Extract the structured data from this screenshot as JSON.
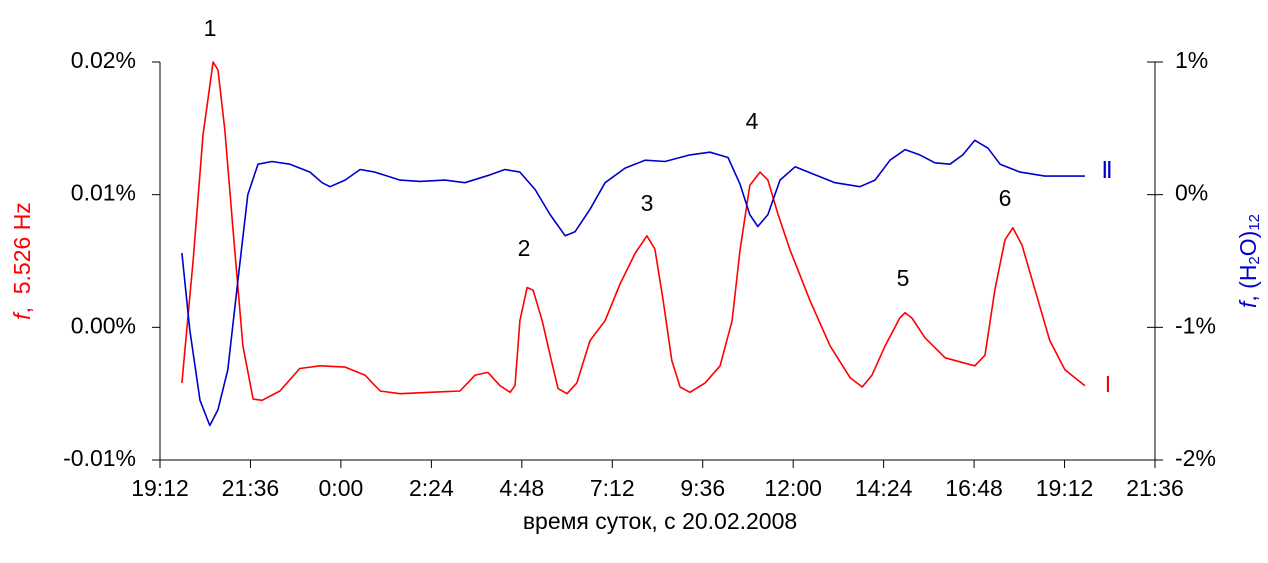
{
  "chart_data": {
    "type": "line",
    "xlabel": "время суток, с 20.02.2008",
    "ylabel": [
      "f",
      ",  5.526 Hz"
    ],
    "y2label": [
      "f",
      ", (H",
      "2",
      "O)",
      "12"
    ],
    "annotations": [
      "1",
      "2",
      "3",
      "4",
      "5",
      "6"
    ],
    "xlim": [
      19.2,
      45.6
    ],
    "xticks": [
      {
        "value": 19.2,
        "label": "19:12"
      },
      {
        "value": 21.6,
        "label": "21:36"
      },
      {
        "value": 24,
        "label": "0:00"
      },
      {
        "value": 26.4,
        "label": "2:24"
      },
      {
        "value": 28.8,
        "label": "4:48"
      },
      {
        "value": 31.2,
        "label": "7:12"
      },
      {
        "value": 33.6,
        "label": "9:36"
      },
      {
        "value": 36,
        "label": "12:00"
      },
      {
        "value": 38.4,
        "label": "14:24"
      },
      {
        "value": 40.8,
        "label": "16:48"
      },
      {
        "value": 43.2,
        "label": "19:12"
      },
      {
        "value": 45.6,
        "label": "21:36"
      }
    ],
    "ylim": [
      -0.01,
      0.02
    ],
    "yticks": [
      {
        "value": -0.01,
        "label": "-0.01%"
      },
      {
        "value": 0,
        "label": "0.00%"
      },
      {
        "value": 0.01,
        "label": "0.01%"
      },
      {
        "value": 0.02,
        "label": "0.02%"
      }
    ],
    "y2lim": [
      -2,
      1
    ],
    "y2ticks": [
      {
        "value": -2,
        "label": "-2%"
      },
      {
        "value": -1,
        "label": "-1%"
      },
      {
        "value": 0,
        "label": "0%"
      },
      {
        "value": 1,
        "label": "1%"
      }
    ],
    "series": [
      {
        "name": "I",
        "color": "#ff0000",
        "x": [
          19.78,
          20.08,
          20.34,
          20.61,
          20.74,
          20.92,
          21.14,
          21.4,
          21.67,
          21.91,
          22.38,
          22.91,
          23.45,
          24.11,
          24.64,
          25.04,
          25.57,
          26.36,
          27.16,
          27.56,
          27.9,
          28.22,
          28.49,
          28.62,
          28.75,
          28.94,
          29.1,
          29.34,
          29.55,
          29.76,
          30.0,
          30.26,
          30.61,
          31.01,
          31.41,
          31.81,
          32.12,
          32.33,
          32.55,
          32.78,
          33.0,
          33.26,
          33.66,
          34.06,
          34.38,
          34.59,
          34.85,
          35.12,
          35.33,
          35.6,
          35.92,
          36.45,
          36.98,
          37.51,
          37.83,
          38.09,
          38.44,
          38.83,
          38.97,
          39.15,
          39.5,
          40.03,
          40.56,
          40.82,
          41.09,
          41.35,
          41.62,
          41.83,
          42.07,
          42.42,
          42.81,
          43.21,
          43.74
        ],
        "values": [
          -0.0042,
          0.0051,
          0.0145,
          0.02,
          0.0194,
          0.0149,
          0.0073,
          -0.0014,
          -0.0054,
          -0.0055,
          -0.0048,
          -0.0031,
          -0.0029,
          -0.003,
          -0.0036,
          -0.0048,
          -0.005,
          -0.0049,
          -0.0048,
          -0.0036,
          -0.0034,
          -0.0044,
          -0.0049,
          -0.0044,
          0.0005,
          0.003,
          0.0028,
          0.0005,
          -0.0021,
          -0.0046,
          -0.005,
          -0.0042,
          -0.001,
          0.0005,
          0.0033,
          0.0056,
          0.0069,
          0.0059,
          0.002,
          -0.0025,
          -0.0045,
          -0.0049,
          -0.0042,
          -0.0029,
          0.0005,
          0.0058,
          0.0107,
          0.0117,
          0.0111,
          0.0085,
          0.0058,
          0.002,
          -0.0014,
          -0.0038,
          -0.0045,
          -0.0036,
          -0.0014,
          0.0007,
          0.0011,
          0.0007,
          -0.0008,
          -0.0023,
          -0.0027,
          -0.0029,
          -0.0021,
          0.0028,
          0.0066,
          0.0075,
          0.0062,
          0.0028,
          -0.001,
          -0.0032,
          -0.0044
        ]
      },
      {
        "name": "Ⅱ",
        "color": "#0000cc",
        "axis": "y2",
        "x": [
          19.78,
          19.99,
          20.26,
          20.52,
          20.74,
          21.0,
          21.27,
          21.53,
          21.8,
          22.17,
          22.65,
          23.18,
          23.5,
          23.71,
          24.11,
          24.51,
          24.9,
          25.57,
          26.1,
          26.76,
          27.29,
          27.96,
          28.35,
          28.75,
          29.15,
          29.55,
          29.95,
          30.21,
          30.61,
          31.01,
          31.54,
          32.07,
          32.6,
          33.26,
          33.79,
          34.27,
          34.59,
          34.85,
          35.06,
          35.33,
          35.65,
          36.05,
          36.58,
          37.11,
          37.77,
          38.17,
          38.57,
          38.97,
          39.36,
          39.76,
          40.16,
          40.5,
          40.82,
          41.17,
          41.49,
          42.02,
          42.68,
          43.74
        ],
        "values": [
          -0.44,
          -1.02,
          -1.55,
          -1.74,
          -1.62,
          -1.32,
          -0.64,
          0.0,
          0.23,
          0.25,
          0.23,
          0.17,
          0.09,
          0.06,
          0.11,
          0.19,
          0.17,
          0.11,
          0.1,
          0.11,
          0.09,
          0.15,
          0.19,
          0.17,
          0.04,
          -0.15,
          -0.31,
          -0.28,
          -0.11,
          0.09,
          0.2,
          0.26,
          0.25,
          0.3,
          0.32,
          0.28,
          0.08,
          -0.15,
          -0.24,
          -0.15,
          0.11,
          0.21,
          0.15,
          0.09,
          0.06,
          0.11,
          0.26,
          0.34,
          0.3,
          0.24,
          0.23,
          0.3,
          0.41,
          0.35,
          0.23,
          0.17,
          0.14,
          0.14
        ]
      }
    ]
  }
}
